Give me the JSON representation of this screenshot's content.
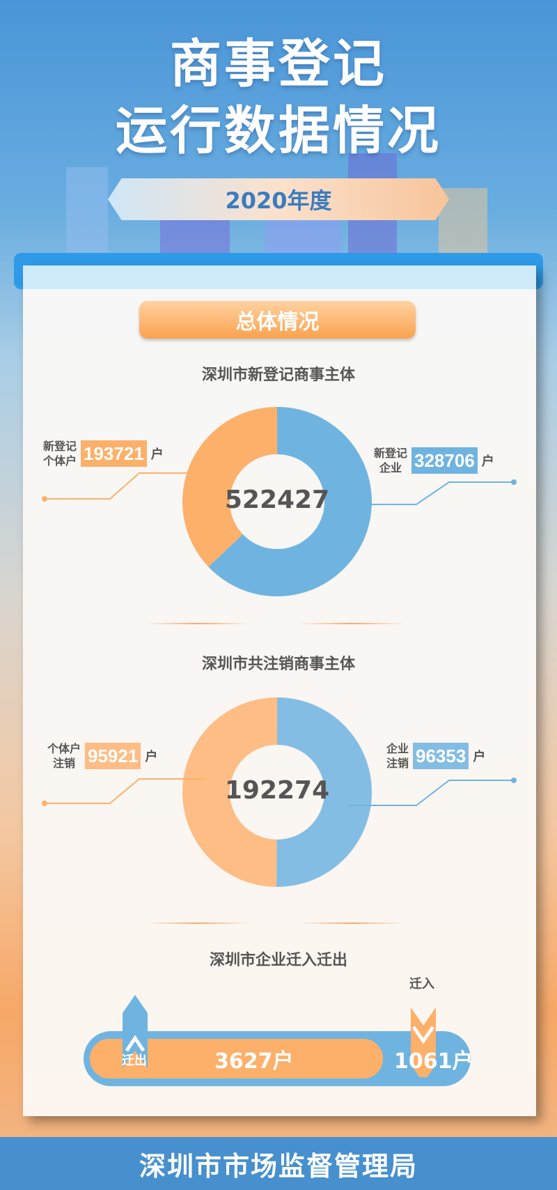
{
  "header": {
    "title_line1": "商事登记",
    "title_line2": "运行数据情况",
    "year": "2020年度"
  },
  "section": {
    "label": "总体情况"
  },
  "colors": {
    "orange": "#fdb06a",
    "blue": "#6fb4e0",
    "footer": "#4790cd"
  },
  "chart_data": [
    {
      "type": "pie",
      "title": "深圳市新登记商事主体",
      "total": "522427",
      "unit": "户",
      "slices": [
        {
          "label": "新登记个体户",
          "label_l1": "新登记",
          "label_l2": "个体户",
          "value": 193721,
          "display": "193721",
          "color": "#fdb06a"
        },
        {
          "label": "新登记企业",
          "label_l1": "新登记",
          "label_l2": "企业",
          "value": 328706,
          "display": "328706",
          "color": "#6fb4e0"
        }
      ]
    },
    {
      "type": "pie",
      "title": "深圳市共注销商事主体",
      "total": "192274",
      "unit": "户",
      "slices": [
        {
          "label": "个体户注销",
          "label_l1": "个体户",
          "label_l2": "注销",
          "value": 95921,
          "display": "95921",
          "color": "#fdbd84"
        },
        {
          "label": "企业注销",
          "label_l1": "企业",
          "label_l2": "注销",
          "value": 96353,
          "display": "96353",
          "color": "#84bde3"
        }
      ]
    },
    {
      "type": "bar",
      "title": "深圳市企业迁入迁出",
      "out_label": "迁出",
      "out_value": "3627户",
      "in_label": "迁入",
      "in_value": "1061户"
    }
  ],
  "footer": {
    "org": "深圳市市场监督管理局"
  }
}
